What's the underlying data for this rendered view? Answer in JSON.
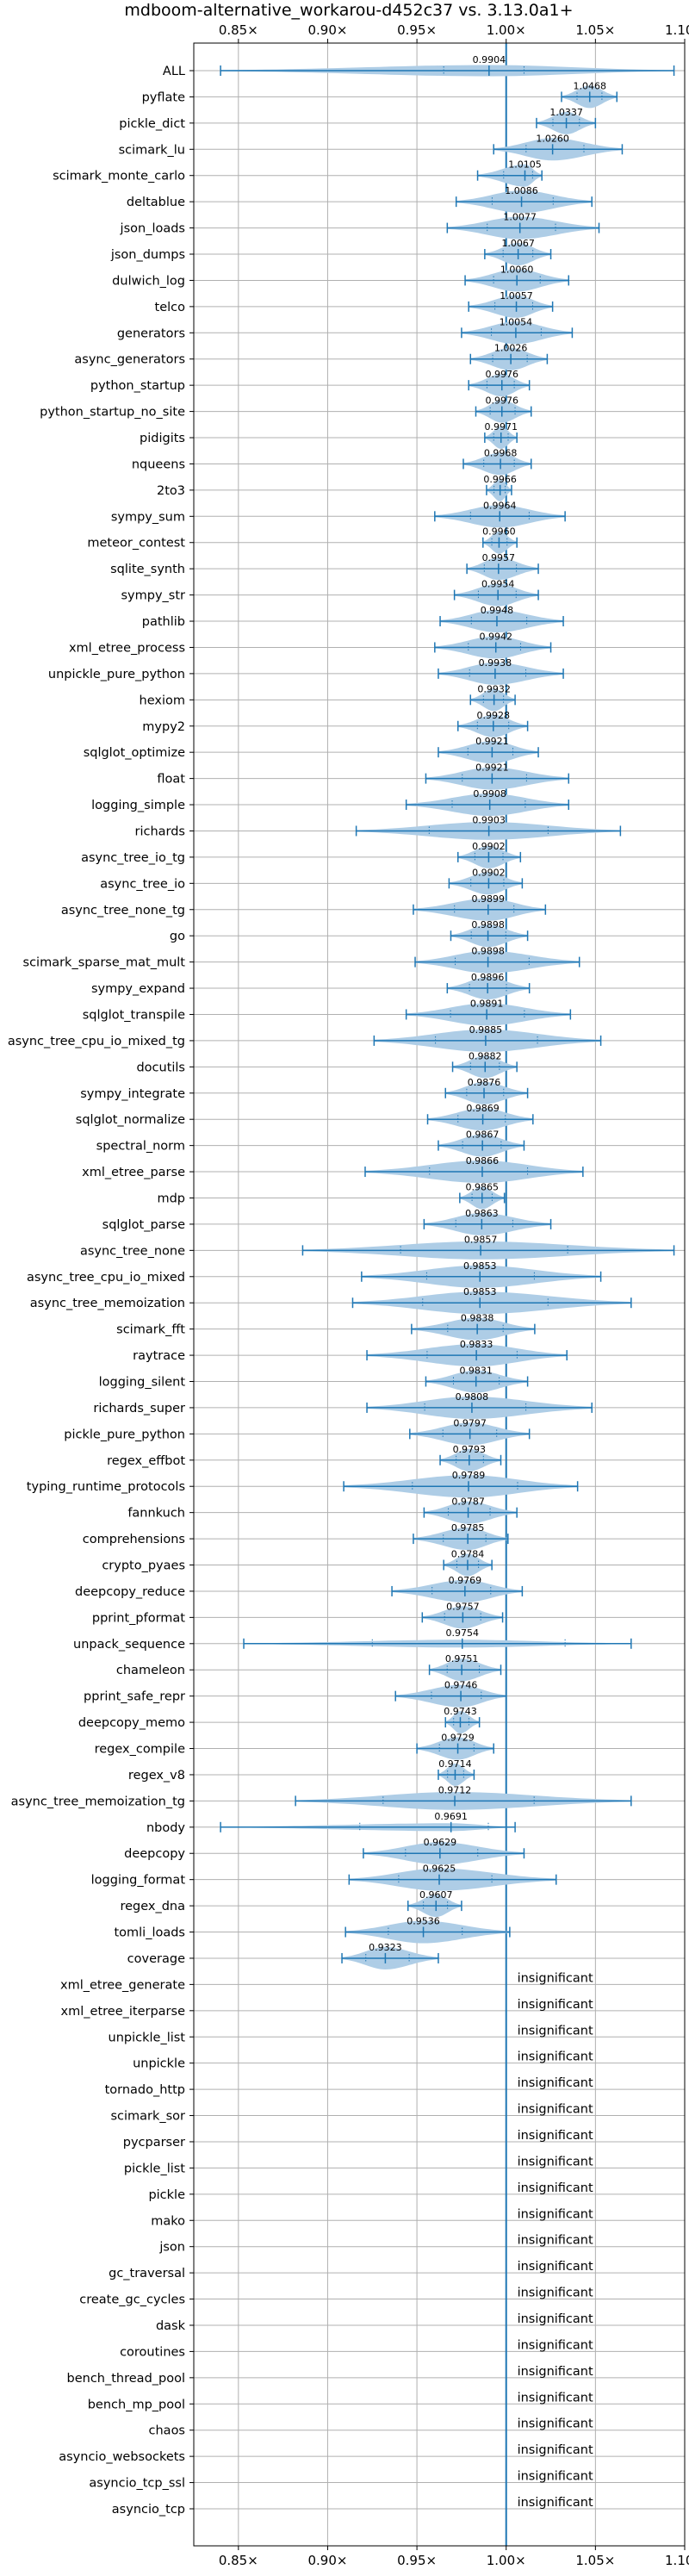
{
  "chart_data": {
    "type": "violin",
    "title": "mdboom-alternative_workarou-d452c37 vs. 3.13.0a1+",
    "xlim": [
      0.825,
      1.1
    ],
    "xticks": [
      "0.85×",
      "0.90×",
      "0.95×",
      "1.00×",
      "1.05×",
      "1.10×"
    ],
    "xtick_values": [
      0.85,
      0.9,
      0.95,
      1.0,
      1.05,
      1.1
    ],
    "reference_line": 1.0,
    "grid": true,
    "insignificant_label": "insignificant",
    "colors": {
      "line": "#1f77b4",
      "fill": "#aecde6",
      "grid": "#b0b0b0"
    },
    "benchmarks": [
      {
        "name": "ALL",
        "value": 0.9904,
        "label": "0.9904",
        "low": 0.84,
        "high": 1.094,
        "q1": 0.965,
        "q3": 1.01,
        "w": 0.5
      },
      {
        "name": "pyflate",
        "value": 1.0468,
        "label": "1.0468",
        "low": 1.031,
        "high": 1.062
      },
      {
        "name": "pickle_dict",
        "value": 1.0337,
        "label": "1.0337",
        "low": 1.017,
        "high": 1.05
      },
      {
        "name": "scimark_lu",
        "value": 1.026,
        "label": "1.0260",
        "low": 0.993,
        "high": 1.065
      },
      {
        "name": "scimark_monte_carlo",
        "value": 1.0105,
        "label": "1.0105",
        "low": 0.984,
        "high": 1.02
      },
      {
        "name": "deltablue",
        "value": 1.0086,
        "label": "1.0086",
        "low": 0.972,
        "high": 1.048
      },
      {
        "name": "json_loads",
        "value": 1.0077,
        "label": "1.0077",
        "low": 0.967,
        "high": 1.052
      },
      {
        "name": "json_dumps",
        "value": 1.0067,
        "label": "1.0067",
        "low": 0.988,
        "high": 1.025
      },
      {
        "name": "dulwich_log",
        "value": 1.006,
        "label": "1.0060",
        "low": 0.977,
        "high": 1.035
      },
      {
        "name": "telco",
        "value": 1.0057,
        "label": "1.0057",
        "low": 0.979,
        "high": 1.026
      },
      {
        "name": "generators",
        "value": 1.0054,
        "label": "1.0054",
        "low": 0.975,
        "high": 1.037
      },
      {
        "name": "async_generators",
        "value": 1.0026,
        "label": "1.0026",
        "low": 0.98,
        "high": 1.023
      },
      {
        "name": "python_startup",
        "value": 0.9976,
        "label": "0.9976",
        "low": 0.979,
        "high": 1.013
      },
      {
        "name": "python_startup_no_site",
        "value": 0.9976,
        "label": "0.9976",
        "low": 0.983,
        "high": 1.014
      },
      {
        "name": "pidigits",
        "value": 0.9971,
        "label": "0.9971",
        "low": 0.988,
        "high": 1.006
      },
      {
        "name": "nqueens",
        "value": 0.9968,
        "label": "0.9968",
        "low": 0.976,
        "high": 1.014
      },
      {
        "name": "2to3",
        "value": 0.9966,
        "label": "0.9966",
        "low": 0.989,
        "high": 1.003
      },
      {
        "name": "sympy_sum",
        "value": 0.9964,
        "label": "0.9964",
        "low": 0.96,
        "high": 1.033
      },
      {
        "name": "meteor_contest",
        "value": 0.996,
        "label": "0.9960",
        "low": 0.987,
        "high": 1.006
      },
      {
        "name": "sqlite_synth",
        "value": 0.9957,
        "label": "0.9957",
        "low": 0.978,
        "high": 1.018
      },
      {
        "name": "sympy_str",
        "value": 0.9954,
        "label": "0.9954",
        "low": 0.971,
        "high": 1.018
      },
      {
        "name": "pathlib",
        "value": 0.9948,
        "label": "0.9948",
        "low": 0.963,
        "high": 1.032
      },
      {
        "name": "xml_etree_process",
        "value": 0.9942,
        "label": "0.9942",
        "low": 0.96,
        "high": 1.025
      },
      {
        "name": "unpickle_pure_python",
        "value": 0.9938,
        "label": "0.9938",
        "low": 0.962,
        "high": 1.032
      },
      {
        "name": "hexiom",
        "value": 0.9932,
        "label": "0.9932",
        "low": 0.98,
        "high": 1.005
      },
      {
        "name": "mypy2",
        "value": 0.9928,
        "label": "0.9928",
        "low": 0.973,
        "high": 1.012
      },
      {
        "name": "sqlglot_optimize",
        "value": 0.9921,
        "label": "0.9921",
        "low": 0.962,
        "high": 1.018
      },
      {
        "name": "float",
        "value": 0.9921,
        "label": "0.9921",
        "low": 0.955,
        "high": 1.035
      },
      {
        "name": "logging_simple",
        "value": 0.9908,
        "label": "0.9908",
        "low": 0.944,
        "high": 1.035
      },
      {
        "name": "richards",
        "value": 0.9903,
        "label": "0.9903",
        "low": 0.916,
        "high": 1.064,
        "w": 0.8
      },
      {
        "name": "async_tree_io_tg",
        "value": 0.9902,
        "label": "0.9902",
        "low": 0.973,
        "high": 1.008
      },
      {
        "name": "async_tree_io",
        "value": 0.9902,
        "label": "0.9902",
        "low": 0.968,
        "high": 1.009
      },
      {
        "name": "async_tree_none_tg",
        "value": 0.9899,
        "label": "0.9899",
        "low": 0.948,
        "high": 1.022
      },
      {
        "name": "go",
        "value": 0.9898,
        "label": "0.9898",
        "low": 0.969,
        "high": 1.012
      },
      {
        "name": "scimark_sparse_mat_mult",
        "value": 0.9898,
        "label": "0.9898",
        "low": 0.949,
        "high": 1.041
      },
      {
        "name": "sympy_expand",
        "value": 0.9896,
        "label": "0.9896",
        "low": 0.967,
        "high": 1.013
      },
      {
        "name": "sqlglot_transpile",
        "value": 0.9891,
        "label": "0.9891",
        "low": 0.944,
        "high": 1.036
      },
      {
        "name": "async_tree_cpu_io_mixed_tg",
        "value": 0.9885,
        "label": "0.9885",
        "low": 0.926,
        "high": 1.053
      },
      {
        "name": "docutils",
        "value": 0.9882,
        "label": "0.9882",
        "low": 0.97,
        "high": 1.006
      },
      {
        "name": "sympy_integrate",
        "value": 0.9876,
        "label": "0.9876",
        "low": 0.966,
        "high": 1.012
      },
      {
        "name": "sqlglot_normalize",
        "value": 0.9869,
        "label": "0.9869",
        "low": 0.956,
        "high": 1.015
      },
      {
        "name": "spectral_norm",
        "value": 0.9867,
        "label": "0.9867",
        "low": 0.962,
        "high": 1.01
      },
      {
        "name": "xml_etree_parse",
        "value": 0.9866,
        "label": "0.9866",
        "low": 0.921,
        "high": 1.043
      },
      {
        "name": "mdp",
        "value": 0.9865,
        "label": "0.9865",
        "low": 0.974,
        "high": 0.999
      },
      {
        "name": "sqlglot_parse",
        "value": 0.9863,
        "label": "0.9863",
        "low": 0.954,
        "high": 1.025
      },
      {
        "name": "async_tree_none",
        "value": 0.9857,
        "label": "0.9857",
        "low": 0.886,
        "high": 1.094,
        "w": 0.8
      },
      {
        "name": "async_tree_cpu_io_mixed",
        "value": 0.9853,
        "label": "0.9853",
        "low": 0.919,
        "high": 1.053
      },
      {
        "name": "async_tree_memoization",
        "value": 0.9853,
        "label": "0.9853",
        "low": 0.914,
        "high": 1.07
      },
      {
        "name": "scimark_fft",
        "value": 0.9838,
        "label": "0.9838",
        "low": 0.947,
        "high": 1.016
      },
      {
        "name": "raytrace",
        "value": 0.9833,
        "label": "0.9833",
        "low": 0.922,
        "high": 1.034
      },
      {
        "name": "logging_silent",
        "value": 0.9831,
        "label": "0.9831",
        "low": 0.955,
        "high": 1.012
      },
      {
        "name": "richards_super",
        "value": 0.9808,
        "label": "0.9808",
        "low": 0.922,
        "high": 1.048
      },
      {
        "name": "pickle_pure_python",
        "value": 0.9797,
        "label": "0.9797",
        "low": 0.946,
        "high": 1.013
      },
      {
        "name": "regex_effbot",
        "value": 0.9793,
        "label": "0.9793",
        "low": 0.963,
        "high": 0.997
      },
      {
        "name": "typing_runtime_protocols",
        "value": 0.9789,
        "label": "0.9789",
        "low": 0.909,
        "high": 1.04
      },
      {
        "name": "fannkuch",
        "value": 0.9787,
        "label": "0.9787",
        "low": 0.954,
        "high": 1.006
      },
      {
        "name": "comprehensions",
        "value": 0.9785,
        "label": "0.9785",
        "low": 0.948,
        "high": 1.001
      },
      {
        "name": "crypto_pyaes",
        "value": 0.9784,
        "label": "0.9784",
        "low": 0.965,
        "high": 0.992
      },
      {
        "name": "deepcopy_reduce",
        "value": 0.9769,
        "label": "0.9769",
        "low": 0.936,
        "high": 1.009
      },
      {
        "name": "pprint_pformat",
        "value": 0.9757,
        "label": "0.9757",
        "low": 0.953,
        "high": 0.998
      },
      {
        "name": "unpack_sequence",
        "value": 0.9754,
        "label": "0.9754",
        "low": 0.853,
        "high": 1.07,
        "q1": 0.925,
        "q3": 1.033,
        "w": 0.35
      },
      {
        "name": "chameleon",
        "value": 0.9751,
        "label": "0.9751",
        "low": 0.957,
        "high": 0.997
      },
      {
        "name": "pprint_safe_repr",
        "value": 0.9746,
        "label": "0.9746",
        "low": 0.938,
        "high": 1.0
      },
      {
        "name": "deepcopy_memo",
        "value": 0.9743,
        "label": "0.9743",
        "low": 0.966,
        "high": 0.985
      },
      {
        "name": "regex_compile",
        "value": 0.9729,
        "label": "0.9729",
        "low": 0.95,
        "high": 0.993
      },
      {
        "name": "regex_v8",
        "value": 0.9714,
        "label": "0.9714",
        "low": 0.962,
        "high": 0.982
      },
      {
        "name": "async_tree_memoization_tg",
        "value": 0.9712,
        "label": "0.9712",
        "low": 0.882,
        "high": 1.07,
        "w": 0.8
      },
      {
        "name": "nbody",
        "value": 0.9691,
        "label": "0.9691",
        "low": 0.84,
        "high": 1.005,
        "q1": 0.918,
        "q3": 0.99,
        "w": 0.35
      },
      {
        "name": "deepcopy",
        "value": 0.9629,
        "label": "0.9629",
        "low": 0.92,
        "high": 1.01
      },
      {
        "name": "logging_format",
        "value": 0.9625,
        "label": "0.9625",
        "low": 0.912,
        "high": 1.028
      },
      {
        "name": "regex_dna",
        "value": 0.9607,
        "label": "0.9607",
        "low": 0.945,
        "high": 0.975
      },
      {
        "name": "tomli_loads",
        "value": 0.9536,
        "label": "0.9536",
        "low": 0.91,
        "high": 1.002
      },
      {
        "name": "coverage",
        "value": 0.9323,
        "label": "0.9323",
        "low": 0.908,
        "high": 0.962
      },
      {
        "name": "xml_etree_generate",
        "insignificant": true
      },
      {
        "name": "xml_etree_iterparse",
        "insignificant": true
      },
      {
        "name": "unpickle_list",
        "insignificant": true
      },
      {
        "name": "unpickle",
        "insignificant": true
      },
      {
        "name": "tornado_http",
        "insignificant": true
      },
      {
        "name": "scimark_sor",
        "insignificant": true
      },
      {
        "name": "pycparser",
        "insignificant": true
      },
      {
        "name": "pickle_list",
        "insignificant": true
      },
      {
        "name": "pickle",
        "insignificant": true
      },
      {
        "name": "mako",
        "insignificant": true
      },
      {
        "name": "json",
        "insignificant": true
      },
      {
        "name": "gc_traversal",
        "insignificant": true
      },
      {
        "name": "create_gc_cycles",
        "insignificant": true
      },
      {
        "name": "dask",
        "insignificant": true
      },
      {
        "name": "coroutines",
        "insignificant": true
      },
      {
        "name": "bench_thread_pool",
        "insignificant": true
      },
      {
        "name": "bench_mp_pool",
        "insignificant": true
      },
      {
        "name": "chaos",
        "insignificant": true
      },
      {
        "name": "asyncio_websockets",
        "insignificant": true
      },
      {
        "name": "asyncio_tcp_ssl",
        "insignificant": true
      },
      {
        "name": "asyncio_tcp",
        "insignificant": true
      }
    ]
  }
}
